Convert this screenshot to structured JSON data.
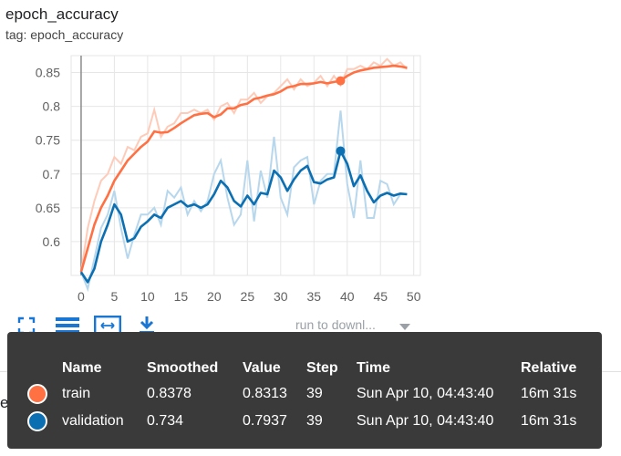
{
  "card": {
    "title": "epoch_accuracy",
    "tag": "tag: epoch_accuracy"
  },
  "toolbar": {
    "icons": [
      "fullscreen-icon",
      "toggle-log-scale-icon",
      "fit-domain-icon",
      "download-icon"
    ],
    "run_select_label": "run to downl...",
    "accent": "#1976d2"
  },
  "next_card": {
    "title": "epoch_loss"
  },
  "tooltip": {
    "headers": [
      "Name",
      "Smoothed",
      "Value",
      "Step",
      "Time",
      "Relative"
    ],
    "rows": [
      {
        "color": "#ff7043",
        "name": "train",
        "smoothed": "0.8378",
        "value": "0.8313",
        "step": "39",
        "time": "Sun Apr 10, 04:43:40",
        "relative": "16m 31s"
      },
      {
        "color": "#0b6fb2",
        "name": "validation",
        "smoothed": "0.734",
        "value": "0.7937",
        "step": "39",
        "time": "Sun Apr 10, 04:43:40",
        "relative": "16m 31s"
      }
    ]
  },
  "chart_data": {
    "type": "line",
    "xlim": [
      -1.5,
      51
    ],
    "ylim": [
      0.55,
      0.875
    ],
    "x_ticks": [
      0,
      5,
      10,
      15,
      20,
      25,
      30,
      35,
      40,
      45,
      50
    ],
    "y_ticks": [
      0.6,
      0.65,
      0.7,
      0.75,
      0.8,
      0.85
    ],
    "grid": true,
    "highlight_step": 39,
    "series": [
      {
        "name": "train",
        "color": "#ff7043",
        "raw_color": "#ffcbb9",
        "x": [
          0,
          1,
          2,
          3,
          4,
          5,
          6,
          7,
          8,
          9,
          10,
          11,
          12,
          13,
          14,
          15,
          16,
          17,
          18,
          19,
          20,
          21,
          22,
          23,
          24,
          25,
          26,
          27,
          28,
          29,
          30,
          31,
          32,
          33,
          34,
          35,
          36,
          37,
          38,
          39,
          40,
          41,
          42,
          43,
          44,
          45,
          46,
          47,
          48,
          49
        ],
        "smoothed": [
          0.555,
          0.59,
          0.625,
          0.65,
          0.668,
          0.69,
          0.705,
          0.72,
          0.73,
          0.74,
          0.748,
          0.763,
          0.761,
          0.762,
          0.768,
          0.775,
          0.781,
          0.787,
          0.789,
          0.79,
          0.784,
          0.788,
          0.797,
          0.797,
          0.802,
          0.804,
          0.811,
          0.813,
          0.816,
          0.818,
          0.822,
          0.828,
          0.83,
          0.833,
          0.833,
          0.834,
          0.836,
          0.834,
          0.836,
          0.8378,
          0.845,
          0.85,
          0.853,
          0.855,
          0.857,
          0.858,
          0.859,
          0.86,
          0.859,
          0.857
        ],
        "value": [
          0.555,
          0.62,
          0.66,
          0.69,
          0.7,
          0.725,
          0.715,
          0.74,
          0.735,
          0.755,
          0.76,
          0.795,
          0.755,
          0.77,
          0.775,
          0.79,
          0.79,
          0.795,
          0.79,
          0.795,
          0.78,
          0.8,
          0.805,
          0.79,
          0.81,
          0.81,
          0.82,
          0.805,
          0.815,
          0.82,
          0.83,
          0.84,
          0.825,
          0.84,
          0.83,
          0.835,
          0.845,
          0.83,
          0.845,
          0.8313,
          0.855,
          0.855,
          0.86,
          0.855,
          0.865,
          0.86,
          0.87,
          0.86,
          0.865,
          0.855
        ]
      },
      {
        "name": "validation",
        "color": "#0b6fb2",
        "raw_color": "#b7d7ed",
        "x": [
          0,
          1,
          2,
          3,
          4,
          5,
          6,
          7,
          8,
          9,
          10,
          11,
          12,
          13,
          14,
          15,
          16,
          17,
          18,
          19,
          20,
          21,
          22,
          23,
          24,
          25,
          26,
          27,
          28,
          29,
          30,
          31,
          32,
          33,
          34,
          35,
          36,
          37,
          38,
          39,
          40,
          41,
          42,
          43,
          44,
          45,
          46,
          47,
          48,
          49
        ],
        "smoothed": [
          0.555,
          0.54,
          0.56,
          0.6,
          0.625,
          0.655,
          0.64,
          0.6,
          0.605,
          0.622,
          0.63,
          0.64,
          0.635,
          0.65,
          0.655,
          0.66,
          0.652,
          0.655,
          0.65,
          0.655,
          0.67,
          0.69,
          0.68,
          0.66,
          0.652,
          0.668,
          0.655,
          0.672,
          0.67,
          0.705,
          0.695,
          0.675,
          0.692,
          0.705,
          0.712,
          0.688,
          0.686,
          0.692,
          0.695,
          0.734,
          0.715,
          0.682,
          0.698,
          0.675,
          0.658,
          0.668,
          0.672,
          0.668,
          0.671,
          0.67
        ],
        "value": [
          0.555,
          0.53,
          0.575,
          0.62,
          0.64,
          0.675,
          0.62,
          0.575,
          0.61,
          0.64,
          0.64,
          0.65,
          0.625,
          0.675,
          0.665,
          0.68,
          0.64,
          0.66,
          0.645,
          0.66,
          0.7,
          0.72,
          0.665,
          0.625,
          0.64,
          0.72,
          0.63,
          0.705,
          0.665,
          0.755,
          0.665,
          0.64,
          0.71,
          0.72,
          0.725,
          0.655,
          0.69,
          0.7,
          0.7,
          0.7937,
          0.685,
          0.635,
          0.72,
          0.635,
          0.635,
          0.69,
          0.685,
          0.655,
          0.67,
          0.67
        ]
      }
    ]
  }
}
